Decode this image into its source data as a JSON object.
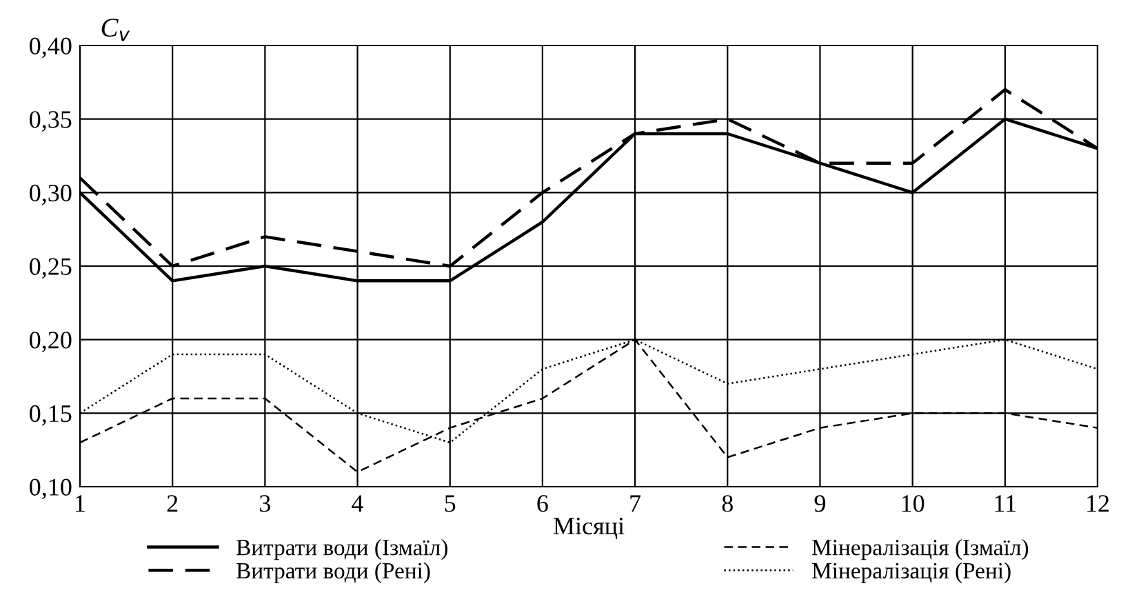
{
  "chart_data": {
    "type": "line",
    "xlabel": "Місяці",
    "ylabel": "C$_{v}$",
    "x": [
      1,
      2,
      3,
      4,
      5,
      6,
      7,
      8,
      9,
      10,
      11,
      12
    ],
    "xlim": [
      1,
      12
    ],
    "xticks": [
      1,
      2,
      3,
      4,
      5,
      6,
      7,
      8,
      9,
      10,
      11,
      12
    ],
    "ylim": [
      0.1,
      0.4
    ],
    "yticks": [
      {
        "value": 0.1,
        "label": "0,10"
      },
      {
        "value": 0.15,
        "label": "0,15"
      },
      {
        "value": 0.2,
        "label": "0,20"
      },
      {
        "value": 0.25,
        "label": "0,25"
      },
      {
        "value": 0.3,
        "label": "0,30"
      },
      {
        "value": 0.35,
        "label": "0,35"
      },
      {
        "value": 0.4,
        "label": "0,40"
      }
    ],
    "grid": true,
    "legend": "bottom",
    "marker": "none",
    "series": [
      {
        "name": "Витрати води (Ізмаїл)",
        "color": "#000000",
        "line_style": "solid",
        "values": [
          0.3,
          0.24,
          0.25,
          0.24,
          0.24,
          0.28,
          0.34,
          0.34,
          0.32,
          0.3,
          0.35,
          0.33
        ]
      },
      {
        "name": "Витрати води (Рені)",
        "color": "#000000",
        "line_style": "dashed",
        "values": [
          0.31,
          0.25,
          0.27,
          0.26,
          0.25,
          0.3,
          0.34,
          0.35,
          0.32,
          0.32,
          0.37,
          0.33
        ]
      },
      {
        "name": "Мінералізація (Ізмаїл)",
        "color": "#000000",
        "line_style": "dashed",
        "values": [
          0.13,
          0.16,
          0.16,
          0.11,
          0.14,
          0.16,
          0.2,
          0.12,
          0.14,
          0.15,
          0.15,
          0.14
        ]
      },
      {
        "name": "Мінералізація (Рені)",
        "color": "#000000",
        "line_style": "dotted",
        "values": [
          0.15,
          0.19,
          0.19,
          0.15,
          0.13,
          0.18,
          0.2,
          0.17,
          0.18,
          0.19,
          0.2,
          0.18
        ]
      }
    ]
  }
}
